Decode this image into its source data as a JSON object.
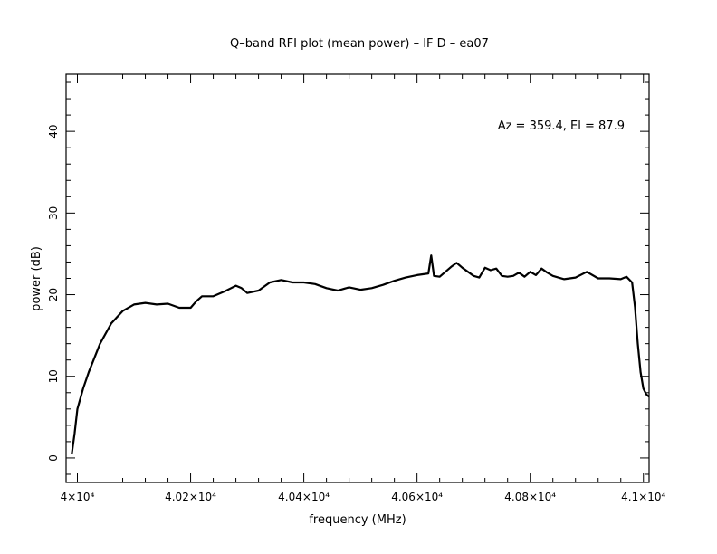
{
  "chart_data": {
    "type": "line",
    "title": "Q–band RFI plot (mean power) – IF D – ea07",
    "xlabel": "frequency (MHz)",
    "ylabel": "power (dB)",
    "annotation": "Az = 359.4, El = 87.9",
    "xlim": [
      39980,
      41010
    ],
    "ylim": [
      -3,
      47
    ],
    "x_ticks": [
      {
        "value": 40000,
        "label": "4×10⁴"
      },
      {
        "value": 40200,
        "label": "4.02×10⁴"
      },
      {
        "value": 40400,
        "label": "4.04×10⁴"
      },
      {
        "value": 40600,
        "label": "4.06×10⁴"
      },
      {
        "value": 40800,
        "label": "4.08×10⁴"
      },
      {
        "value": 41000,
        "label": "4.1×10⁴"
      }
    ],
    "y_ticks": [
      {
        "value": 0,
        "label": "0"
      },
      {
        "value": 10,
        "label": "10"
      },
      {
        "value": 20,
        "label": "20"
      },
      {
        "value": 30,
        "label": "30"
      },
      {
        "value": 40,
        "label": "40"
      }
    ],
    "grid": false,
    "series": [
      {
        "color": "#000000",
        "x": [
          39990,
          39995,
          40000,
          40010,
          40020,
          40040,
          40060,
          40080,
          40100,
          40120,
          40140,
          40160,
          40180,
          40200,
          40210,
          40220,
          40240,
          40260,
          40280,
          40290,
          40300,
          40320,
          40340,
          40360,
          40380,
          40400,
          40420,
          40440,
          40460,
          40480,
          40500,
          40520,
          40540,
          40560,
          40580,
          40600,
          40620,
          40625,
          40630,
          40640,
          40660,
          40670,
          40680,
          40700,
          40710,
          40720,
          40730,
          40740,
          40750,
          40760,
          40770,
          40780,
          40790,
          40800,
          40810,
          40820,
          40830,
          40840,
          40860,
          40880,
          40900,
          40920,
          40940,
          40960,
          40970,
          40980,
          40985,
          40990,
          40995,
          41000,
          41005,
          41010
        ],
        "y": [
          0.5,
          3,
          6,
          8.5,
          10.5,
          14,
          16.5,
          18,
          18.8,
          19,
          18.8,
          18.9,
          18.4,
          18.4,
          19.2,
          19.8,
          19.8,
          20.4,
          21.1,
          20.8,
          20.2,
          20.5,
          21.5,
          21.8,
          21.5,
          21.5,
          21.3,
          20.8,
          20.5,
          20.9,
          20.6,
          20.8,
          21.2,
          21.7,
          22.1,
          22.4,
          22.6,
          24.8,
          22.3,
          22.2,
          23.4,
          23.9,
          23.3,
          22.3,
          22.1,
          23.3,
          23.0,
          23.2,
          22.3,
          22.2,
          22.3,
          22.7,
          22.2,
          22.8,
          22.4,
          23.2,
          22.7,
          22.3,
          21.9,
          22.1,
          22.8,
          22.0,
          22.0,
          21.9,
          22.2,
          21.5,
          18.5,
          14.0,
          10.5,
          8.5,
          7.8,
          7.5
        ]
      }
    ]
  }
}
